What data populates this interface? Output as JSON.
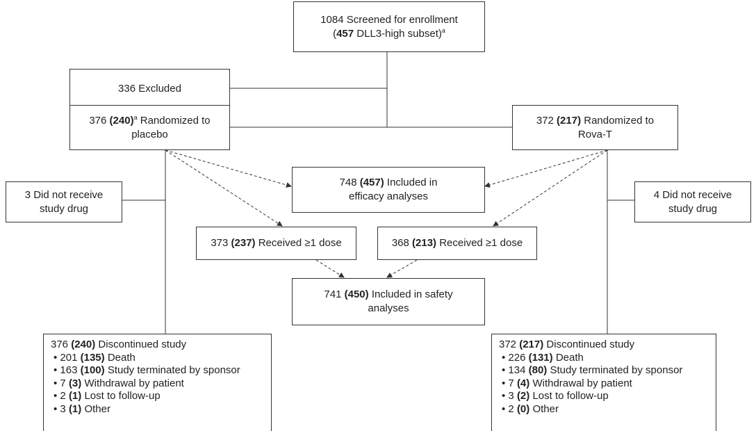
{
  "nodes": {
    "screened": {
      "line1": "1084 Screened for enrollment",
      "line2": [
        "(",
        "457",
        " DLL3-high subset)",
        "a"
      ]
    },
    "excluded": {
      "text": "336 Excluded"
    },
    "placebo": {
      "line1": [
        "376 ",
        "(240)",
        "a",
        " Randomized to"
      ],
      "line2": "placebo"
    },
    "rova": {
      "line1": [
        "372 ",
        "(217)",
        " Randomized to"
      ],
      "line2": "Rova-T"
    },
    "no_drug_placebo": {
      "line1": "3 Did not receive",
      "line2": "study drug"
    },
    "no_drug_rova": {
      "line1": "4 Did not receive",
      "line2": "study drug"
    },
    "efficacy": {
      "line1": [
        "748 ",
        "(457)",
        " Included in"
      ],
      "line2": "efficacy analyses"
    },
    "dose_placebo": {
      "line1": [
        "373 ",
        "(237)",
        " Received ≥1 dose"
      ]
    },
    "dose_rova": {
      "line1": [
        "368 ",
        "(213)",
        " Received ≥1 dose"
      ]
    },
    "safety": {
      "line1": [
        "741 ",
        "(450)",
        " Included in safety"
      ],
      "line2": "analyses"
    },
    "discontinued_placebo": {
      "header": [
        "376 ",
        "(240)",
        " Discontinued study"
      ],
      "items": [
        [
          "• 201 ",
          "(135)",
          " Death"
        ],
        [
          "• 163 ",
          "(100)",
          " Study terminated by sponsor"
        ],
        [
          "• 7 ",
          "(3)",
          " Withdrawal by patient"
        ],
        [
          "• 2 ",
          "(1)",
          " Lost to follow-up"
        ],
        [
          "• 3 ",
          "(1)",
          " Other"
        ]
      ]
    },
    "discontinued_rova": {
      "header": [
        "372 ",
        "(217)",
        " Discontinued study"
      ],
      "items": [
        [
          "• 226 ",
          "(131)",
          " Death"
        ],
        [
          "• 134 ",
          "(80)",
          " Study terminated by sponsor"
        ],
        [
          "• 7 ",
          "(4)",
          " Withdrawal by patient"
        ],
        [
          "• 3 ",
          "(2)",
          " Lost to follow-up"
        ],
        [
          "• 2 ",
          "(0)",
          " Other"
        ]
      ]
    }
  }
}
